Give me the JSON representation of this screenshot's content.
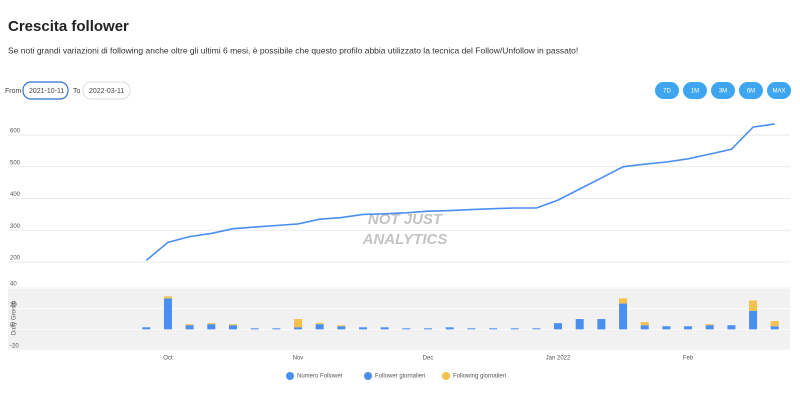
{
  "header": {
    "title": "Crescita follower",
    "subtitle": "Se noti grandi variazioni di following anche oltre gli ultimi 6 mesi, è possibile che questo profilo abbia utilizzato la tecnica del Follow/Unfollow in passato!"
  },
  "controls": {
    "from_label": "From",
    "from_value": "2021-10-11",
    "to_label": "To",
    "to_value": "2022-03-11",
    "ranges": [
      "7D",
      "1M",
      "3M",
      "6M",
      "MAX"
    ]
  },
  "watermark": [
    "NOT JUST",
    "ANALYTICS"
  ],
  "chart_data": [
    {
      "type": "line",
      "series": [
        {
          "name": "Numero Follower",
          "color": "#4a8ef0",
          "values": [
            205,
            262,
            280,
            290,
            305,
            310,
            315,
            320,
            335,
            340,
            350,
            352,
            355,
            360,
            362,
            365,
            368,
            370,
            370,
            395,
            430,
            465,
            500,
            508,
            515,
            525,
            540,
            555,
            625,
            635
          ]
        }
      ],
      "ylim": [
        180,
        660
      ],
      "yticks": [
        200,
        300,
        400,
        500,
        600
      ],
      "grid": true
    },
    {
      "type": "bar",
      "y_label": "Daily Growth",
      "stacked": true,
      "categories": [
        null,
        "Oct",
        null,
        null,
        null,
        null,
        null,
        "Nov",
        null,
        null,
        null,
        null,
        null,
        "Dec",
        null,
        null,
        null,
        null,
        null,
        "Jan 2022",
        null,
        null,
        null,
        null,
        null,
        "Feb",
        null,
        null,
        null,
        null
      ],
      "series": [
        {
          "name": "Follower giornalieri",
          "color": "#4a8ef0",
          "values": [
            2,
            30,
            4,
            5,
            4,
            1,
            1,
            2,
            5,
            3,
            2,
            2,
            1,
            1,
            2,
            1,
            1,
            1,
            1,
            6,
            10,
            10,
            25,
            4,
            3,
            3,
            4,
            4,
            18,
            3
          ]
        },
        {
          "name": "Following giornalieri",
          "color": "#f2c14e",
          "values": [
            0,
            2,
            1,
            1,
            1,
            0,
            0,
            8,
            1,
            1,
            0,
            0,
            0,
            0,
            0,
            0,
            0,
            0,
            0,
            0,
            0,
            0,
            5,
            3,
            0,
            0,
            1,
            0,
            10,
            5
          ]
        }
      ],
      "ylim": [
        -20,
        42
      ],
      "yticks": [
        -20,
        0,
        20,
        40
      ],
      "grid": true
    }
  ]
}
